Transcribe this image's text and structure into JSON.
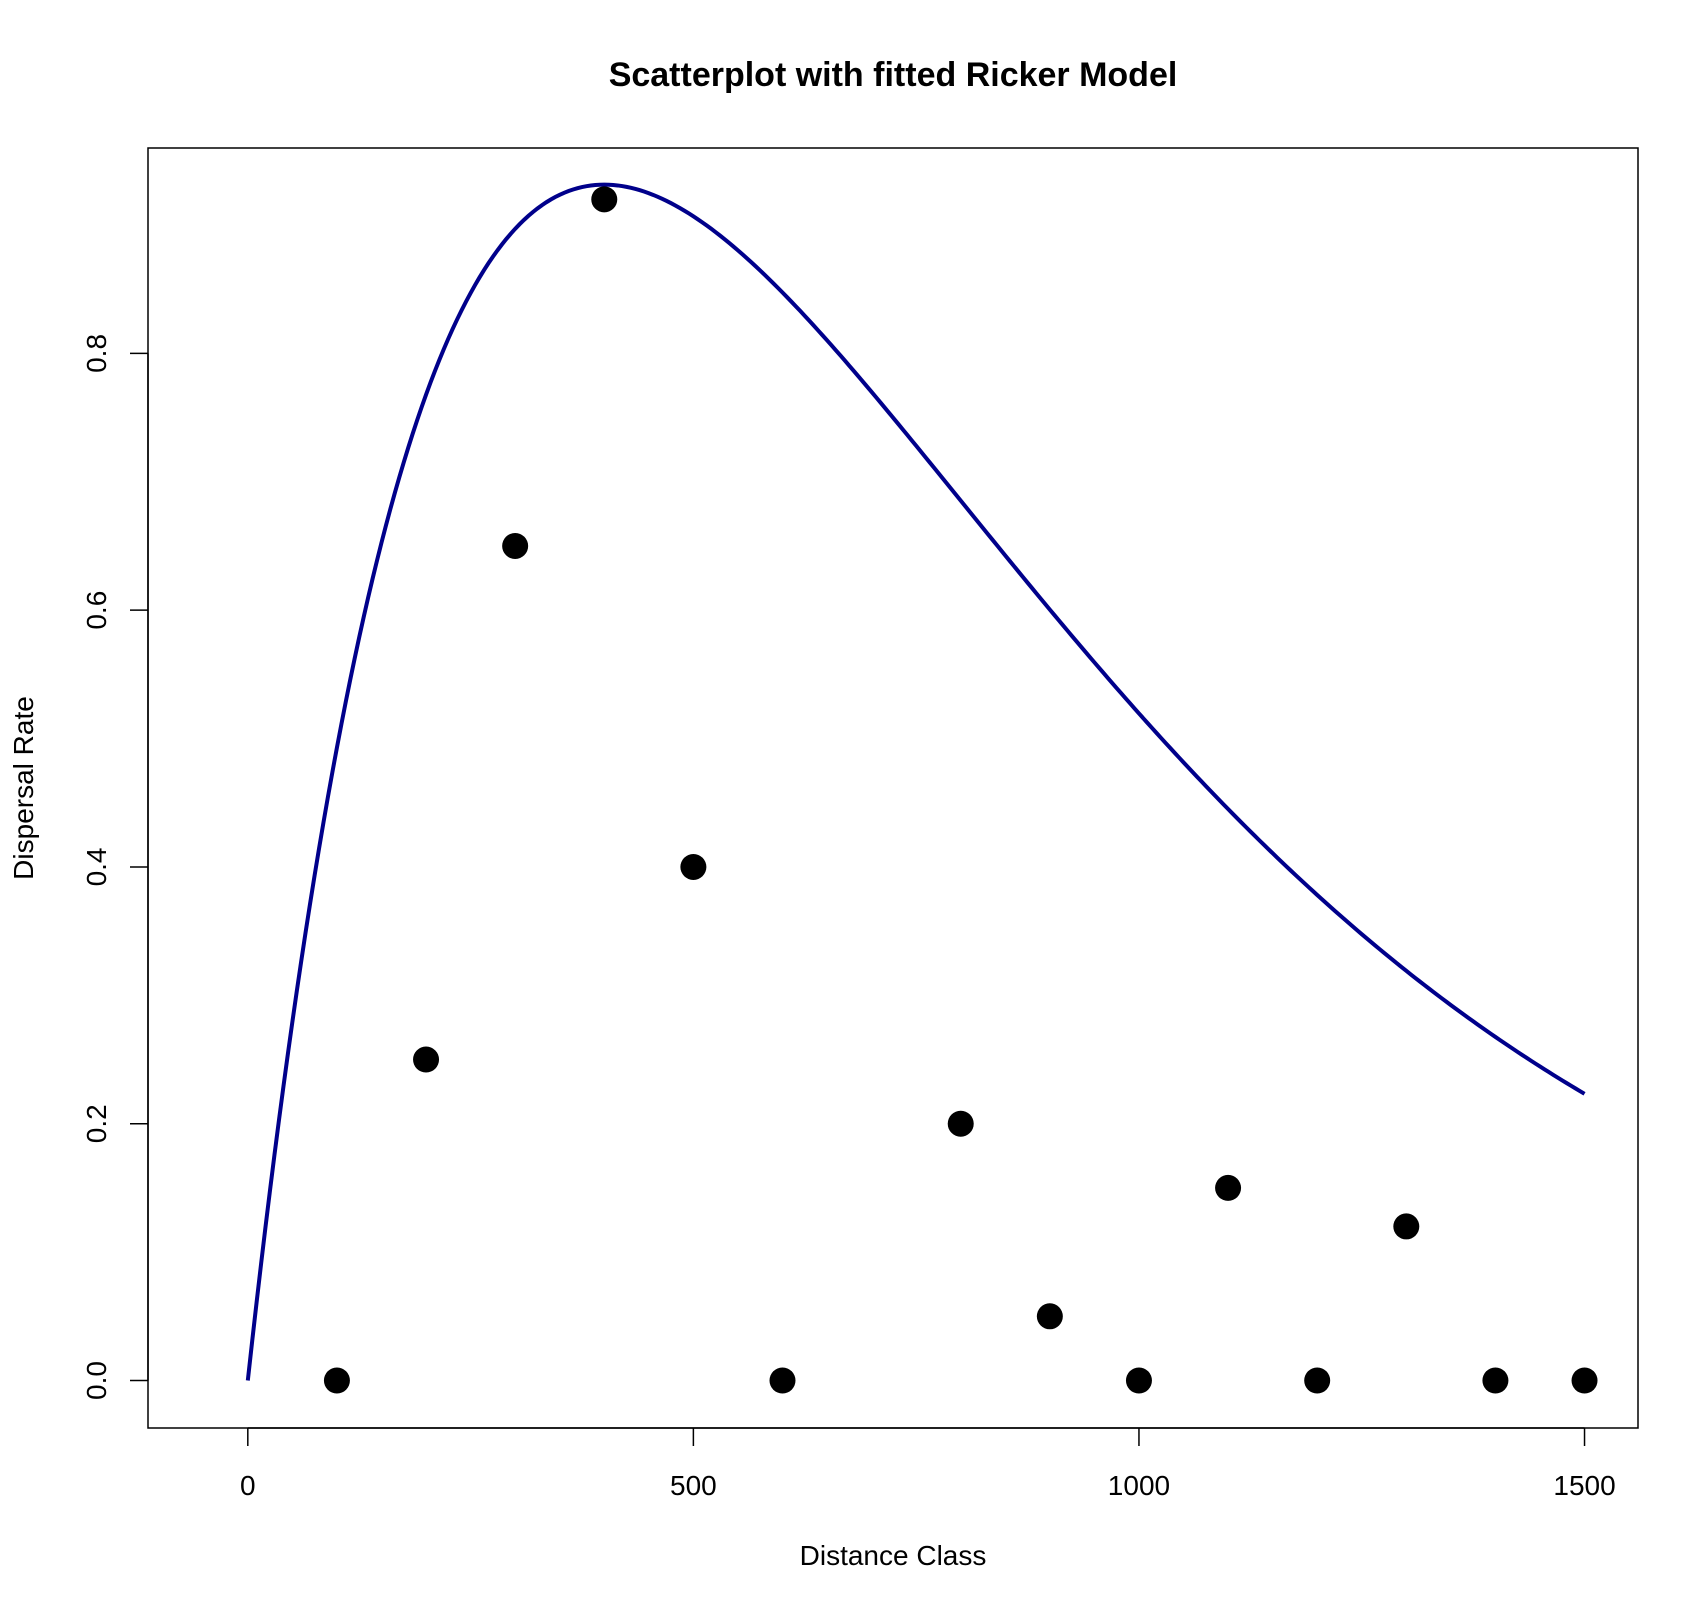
{
  "chart_data": {
    "type": "scatter",
    "title": "Scatterplot with fitted Ricker Model",
    "xlabel": "Distance Class",
    "ylabel": "Dispersal Rate",
    "xlim": [
      -112,
      1560
    ],
    "ylim": [
      -0.037,
      0.96
    ],
    "x_ticks": [
      0,
      500,
      1000,
      1500
    ],
    "x_tick_labels": [
      "0",
      "500",
      "1000",
      "1500"
    ],
    "y_ticks": [
      0.0,
      0.2,
      0.4,
      0.6,
      0.8
    ],
    "y_tick_labels": [
      "0.0",
      "0.2",
      "0.4",
      "0.6",
      "0.8"
    ],
    "grid": false,
    "legend": "none",
    "point_color": "#000000",
    "curve_color": "#00008B",
    "points": {
      "x": [
        100,
        200,
        300,
        400,
        500,
        600,
        800,
        900,
        1000,
        1100,
        1200,
        1300,
        1400,
        1500
      ],
      "y": [
        0.0,
        0.25,
        0.65,
        0.92,
        0.4,
        0.0,
        0.2,
        0.05,
        0.0,
        0.15,
        0.0,
        0.12,
        0.0,
        0.0
      ]
    },
    "fitted_curve": {
      "model": "Ricker",
      "a": 0.00633,
      "b": 0.0025,
      "x_range": [
        0,
        1500
      ]
    }
  }
}
